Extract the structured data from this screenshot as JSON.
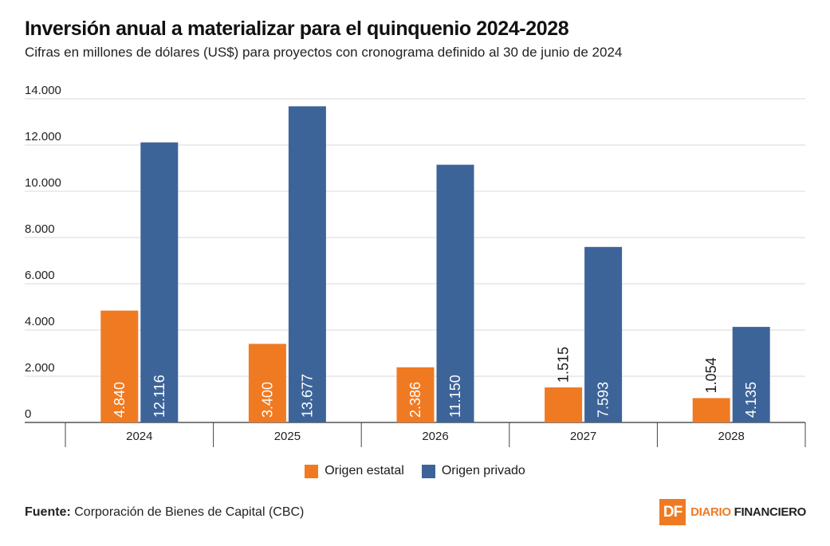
{
  "chart_data": {
    "type": "bar",
    "title": "Inversión anual a materializar para el quinquenio 2024-2028",
    "subtitle": "Cifras en millones de dólares (US$) para proyectos con cronograma definido al 30 de junio de 2024",
    "categories": [
      "2024",
      "2025",
      "2026",
      "2027",
      "2028"
    ],
    "series": [
      {
        "name": "Origen estatal",
        "color": "#f07a22",
        "values": [
          4840,
          3400,
          2386,
          1515,
          1054
        ],
        "labels": [
          "4.840",
          "3.400",
          "2.386",
          "1.515",
          "1.054"
        ]
      },
      {
        "name": "Origen privado",
        "color": "#3d6499",
        "values": [
          12116,
          13677,
          11150,
          7593,
          4135
        ],
        "labels": [
          "12.116",
          "13.677",
          "11.150",
          "7.593",
          "4.135"
        ]
      }
    ],
    "ylim": [
      0,
      14000
    ],
    "yticks": [
      0,
      2000,
      4000,
      6000,
      8000,
      10000,
      12000,
      14000
    ],
    "ytick_labels": [
      "0",
      "2.000",
      "4.000",
      "6.000",
      "8.000",
      "10.000",
      "12.000",
      "14.000"
    ],
    "xlabel": "",
    "ylabel": "",
    "grid": true,
    "legend": "bottom-center"
  },
  "source": {
    "label": "Fuente:",
    "text": "Corporación de Bienes de Capital (CBC)"
  },
  "logo": {
    "mark": "DF",
    "word1": "DIARIO",
    "word2": "FINANCIERO"
  }
}
